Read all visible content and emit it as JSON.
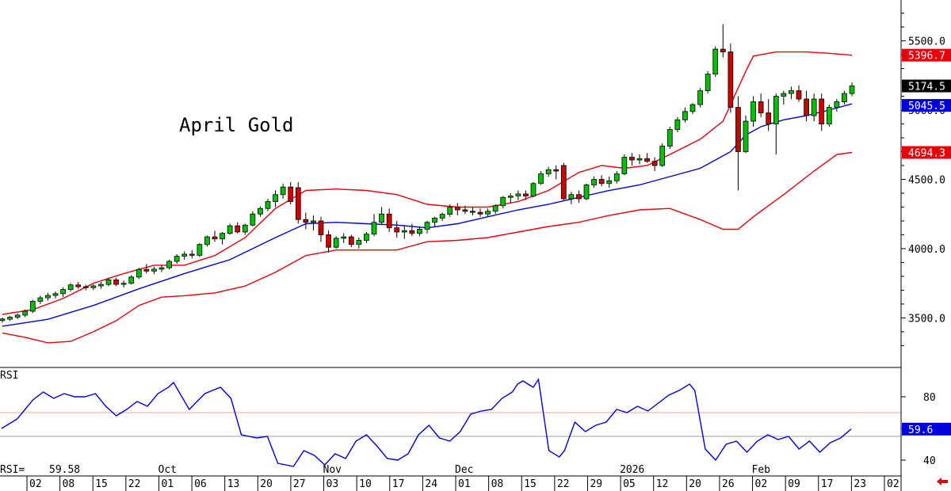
{
  "chart_data": {
    "type": "candlestick",
    "title": "April Gold",
    "price_axis": {
      "ticks": [
        "5500.0",
        "5000.0",
        "4500.0",
        "4000.0",
        "3500.0"
      ],
      "tick_values": [
        5500,
        5000,
        4500,
        4000,
        3500
      ],
      "ylim": [
        3165,
        5795
      ]
    },
    "x_labels": [
      "02",
      "08",
      "15",
      "22",
      "01",
      "06",
      "13",
      "20",
      "27",
      "03",
      "10",
      "17",
      "24",
      "01",
      "08",
      "15",
      "22",
      "29",
      "05",
      "12",
      "20",
      "26",
      "02",
      "09",
      "17",
      "23",
      "02"
    ],
    "month_labels": [
      {
        "text": "Oct",
        "at_label_index": 4
      },
      {
        "text": "Nov",
        "at_label_index": 9
      },
      {
        "text": "Dec",
        "at_label_index": 13
      },
      {
        "text": "2026",
        "at_label_index": 18
      },
      {
        "text": "Feb",
        "at_label_index": 22
      }
    ],
    "tags": {
      "upper_band": {
        "text": "5396.7",
        "value": 5396.7,
        "color": "#e8000b"
      },
      "last_close": {
        "text": "5174.5",
        "value": 5174.5,
        "color": "#000000"
      },
      "middle_band": {
        "text": "5045.5",
        "value": 5045.5,
        "color": "#0000dd"
      },
      "lower_band": {
        "text": "4694.3",
        "value": 4694.3,
        "color": "#e8000b"
      }
    },
    "ohlc": [
      [
        3481,
        3502,
        3465,
        3492
      ],
      [
        3490,
        3515,
        3478,
        3505
      ],
      [
        3505,
        3530,
        3492,
        3520
      ],
      [
        3520,
        3560,
        3505,
        3548
      ],
      [
        3548,
        3630,
        3535,
        3620
      ],
      [
        3620,
        3660,
        3600,
        3645
      ],
      [
        3645,
        3680,
        3625,
        3662
      ],
      [
        3662,
        3690,
        3640,
        3675
      ],
      [
        3675,
        3720,
        3650,
        3705
      ],
      [
        3705,
        3750,
        3690,
        3738
      ],
      [
        3738,
        3760,
        3710,
        3725
      ],
      [
        3725,
        3740,
        3700,
        3718
      ],
      [
        3718,
        3742,
        3700,
        3731
      ],
      [
        3731,
        3760,
        3710,
        3742
      ],
      [
        3742,
        3790,
        3728,
        3775
      ],
      [
        3775,
        3790,
        3730,
        3742
      ],
      [
        3742,
        3770,
        3720,
        3750
      ],
      [
        3750,
        3808,
        3740,
        3795
      ],
      [
        3795,
        3860,
        3780,
        3850
      ],
      [
        3850,
        3890,
        3820,
        3838
      ],
      [
        3838,
        3870,
        3815,
        3852
      ],
      [
        3852,
        3880,
        3830,
        3862
      ],
      [
        3862,
        3920,
        3850,
        3908
      ],
      [
        3908,
        3960,
        3890,
        3945
      ],
      [
        3945,
        3980,
        3920,
        3960
      ],
      [
        3960,
        3990,
        3930,
        3952
      ],
      [
        3952,
        4040,
        3940,
        4030
      ],
      [
        4030,
        4095,
        4015,
        4085
      ],
      [
        4085,
        4130,
        4050,
        4070
      ],
      [
        4070,
        4120,
        4030,
        4110
      ],
      [
        4110,
        4180,
        4100,
        4165
      ],
      [
        4165,
        4190,
        4110,
        4120
      ],
      [
        4120,
        4180,
        4100,
        4170
      ],
      [
        4170,
        4270,
        4160,
        4250
      ],
      [
        4250,
        4305,
        4230,
        4290
      ],
      [
        4290,
        4360,
        4270,
        4340
      ],
      [
        4340,
        4420,
        4300,
        4390
      ],
      [
        4390,
        4470,
        4360,
        4445
      ],
      [
        4445,
        4480,
        4320,
        4340
      ],
      [
        4440,
        4480,
        4180,
        4210
      ],
      [
        4210,
        4260,
        4140,
        4190
      ],
      [
        4190,
        4240,
        4130,
        4200
      ],
      [
        4200,
        4230,
        4050,
        4100
      ],
      [
        4100,
        4130,
        3970,
        4010
      ],
      [
        4010,
        4090,
        4000,
        4075
      ],
      [
        4075,
        4110,
        4040,
        4085
      ],
      [
        4085,
        4100,
        4010,
        4030
      ],
      [
        4030,
        4080,
        4000,
        4060
      ],
      [
        4060,
        4120,
        4040,
        4105
      ],
      [
        4105,
        4250,
        4090,
        4190
      ],
      [
        4190,
        4300,
        4170,
        4250
      ],
      [
        4250,
        4290,
        4120,
        4150
      ],
      [
        4150,
        4200,
        4080,
        4120
      ],
      [
        4120,
        4170,
        4070,
        4130
      ],
      [
        4130,
        4180,
        4090,
        4110
      ],
      [
        4110,
        4160,
        4090,
        4140
      ],
      [
        4140,
        4200,
        4110,
        4190
      ],
      [
        4190,
        4230,
        4160,
        4220
      ],
      [
        4220,
        4260,
        4200,
        4248
      ],
      [
        4248,
        4320,
        4230,
        4300
      ],
      [
        4300,
        4330,
        4240,
        4280
      ],
      [
        4280,
        4310,
        4250,
        4270
      ],
      [
        4270,
        4300,
        4240,
        4262
      ],
      [
        4262,
        4290,
        4230,
        4250
      ],
      [
        4250,
        4290,
        4230,
        4270
      ],
      [
        4270,
        4320,
        4250,
        4310
      ],
      [
        4310,
        4380,
        4290,
        4370
      ],
      [
        4370,
        4400,
        4330,
        4380
      ],
      [
        4380,
        4420,
        4350,
        4395
      ],
      [
        4395,
        4420,
        4350,
        4380
      ],
      [
        4380,
        4480,
        4370,
        4470
      ],
      [
        4470,
        4560,
        4460,
        4540
      ],
      [
        4540,
        4590,
        4520,
        4570
      ],
      [
        4570,
        4600,
        4500,
        4560
      ],
      [
        4600,
        4620,
        4350,
        4360
      ],
      [
        4360,
        4410,
        4320,
        4390
      ],
      [
        4390,
        4420,
        4330,
        4360
      ],
      [
        4360,
        4470,
        4350,
        4460
      ],
      [
        4460,
        4520,
        4440,
        4500
      ],
      [
        4500,
        4530,
        4450,
        4470
      ],
      [
        4470,
        4520,
        4440,
        4490
      ],
      [
        4490,
        4560,
        4470,
        4540
      ],
      [
        4540,
        4680,
        4530,
        4660
      ],
      [
        4660,
        4690,
        4600,
        4640
      ],
      [
        4640,
        4680,
        4610,
        4650
      ],
      [
        4650,
        4690,
        4620,
        4630
      ],
      [
        4630,
        4660,
        4560,
        4600
      ],
      [
        4600,
        4760,
        4590,
        4740
      ],
      [
        4740,
        4880,
        4720,
        4860
      ],
      [
        4860,
        4950,
        4840,
        4930
      ],
      [
        4930,
        5020,
        4910,
        4990
      ],
      [
        4990,
        5050,
        4970,
        5040
      ],
      [
        5040,
        5160,
        5020,
        5140
      ],
      [
        5140,
        5280,
        5120,
        5260
      ],
      [
        5260,
        5460,
        5240,
        5440
      ],
      [
        5440,
        5620,
        5380,
        5420
      ],
      [
        5420,
        5480,
        4980,
        5020
      ],
      [
        5020,
        5100,
        4420,
        4700
      ],
      [
        4700,
        4960,
        4690,
        4920
      ],
      [
        4920,
        5100,
        4880,
        5060
      ],
      [
        5060,
        5120,
        4950,
        4980
      ],
      [
        4980,
        5080,
        4850,
        4900
      ],
      [
        4900,
        5120,
        4680,
        5100
      ],
      [
        5100,
        5140,
        5040,
        5120
      ],
      [
        5120,
        5170,
        5080,
        5140
      ],
      [
        5140,
        5180,
        5060,
        5080
      ],
      [
        5080,
        5140,
        4920,
        4960
      ],
      [
        4960,
        5120,
        4920,
        5080
      ],
      [
        5080,
        5120,
        4850,
        4900
      ],
      [
        4900,
        5040,
        4880,
        5020
      ],
      [
        5020,
        5080,
        4990,
        5060
      ],
      [
        5060,
        5140,
        5040,
        5120
      ],
      [
        5120,
        5200,
        5100,
        5174.5
      ]
    ],
    "upper_band": [
      [
        0,
        3525
      ],
      [
        4,
        3560
      ],
      [
        8,
        3640
      ],
      [
        12,
        3750
      ],
      [
        16,
        3820
      ],
      [
        20,
        3880
      ],
      [
        24,
        3880
      ],
      [
        28,
        3950
      ],
      [
        32,
        4080
      ],
      [
        36,
        4290
      ],
      [
        40,
        4420
      ],
      [
        44,
        4430
      ],
      [
        48,
        4420
      ],
      [
        52,
        4390
      ],
      [
        56,
        4320
      ],
      [
        60,
        4300
      ],
      [
        64,
        4300
      ],
      [
        68,
        4340
      ],
      [
        72,
        4420
      ],
      [
        76,
        4550
      ],
      [
        79,
        4600
      ],
      [
        82,
        4580
      ],
      [
        85,
        4600
      ],
      [
        88,
        4680
      ],
      [
        92,
        4790
      ],
      [
        95,
        4920
      ],
      [
        98,
        5280
      ],
      [
        99,
        5390
      ],
      [
        102,
        5420
      ],
      [
        106,
        5420
      ],
      [
        109,
        5410
      ],
      [
        112,
        5396.7
      ]
    ],
    "middle_band": [
      [
        0,
        3440
      ],
      [
        6,
        3490
      ],
      [
        12,
        3590
      ],
      [
        18,
        3710
      ],
      [
        24,
        3820
      ],
      [
        30,
        3920
      ],
      [
        36,
        4080
      ],
      [
        40,
        4180
      ],
      [
        44,
        4190
      ],
      [
        48,
        4180
      ],
      [
        52,
        4170
      ],
      [
        56,
        4150
      ],
      [
        60,
        4180
      ],
      [
        64,
        4230
      ],
      [
        68,
        4280
      ],
      [
        72,
        4320
      ],
      [
        76,
        4370
      ],
      [
        80,
        4420
      ],
      [
        84,
        4460
      ],
      [
        88,
        4520
      ],
      [
        92,
        4580
      ],
      [
        96,
        4700
      ],
      [
        98,
        4820
      ],
      [
        100,
        4880
      ],
      [
        103,
        4930
      ],
      [
        106,
        4960
      ],
      [
        109,
        5000
      ],
      [
        112,
        5045.5
      ]
    ],
    "lower_band": [
      [
        0,
        3390
      ],
      [
        3,
        3360
      ],
      [
        6,
        3320
      ],
      [
        9,
        3330
      ],
      [
        12,
        3400
      ],
      [
        15,
        3480
      ],
      [
        18,
        3590
      ],
      [
        21,
        3650
      ],
      [
        24,
        3660
      ],
      [
        28,
        3680
      ],
      [
        32,
        3730
      ],
      [
        36,
        3830
      ],
      [
        40,
        3950
      ],
      [
        44,
        3990
      ],
      [
        48,
        3990
      ],
      [
        52,
        3990
      ],
      [
        56,
        4050
      ],
      [
        60,
        4060
      ],
      [
        64,
        4080
      ],
      [
        68,
        4120
      ],
      [
        72,
        4160
      ],
      [
        76,
        4190
      ],
      [
        80,
        4240
      ],
      [
        84,
        4280
      ],
      [
        88,
        4290
      ],
      [
        92,
        4210
      ],
      [
        95,
        4140
      ],
      [
        97,
        4140
      ],
      [
        99,
        4230
      ],
      [
        103,
        4390
      ],
      [
        107,
        4560
      ],
      [
        110,
        4680
      ],
      [
        112,
        4694.3
      ]
    ],
    "rsi": {
      "label": "RSI",
      "readout_label": "RSI=",
      "readout_value": "59.58",
      "last_tag": "59.6",
      "ticks": [
        "80",
        "60",
        "40"
      ],
      "tick_values": [
        80,
        60,
        40
      ],
      "overbought": 70,
      "oversold": 30,
      "ylim": [
        30,
        98
      ],
      "values": [
        [
          0,
          60
        ],
        [
          3,
          66
        ],
        [
          6,
          78
        ],
        [
          8,
          83
        ],
        [
          10,
          79
        ],
        [
          12,
          82
        ],
        [
          14,
          80
        ],
        [
          16,
          80
        ],
        [
          18,
          82
        ],
        [
          20,
          74
        ],
        [
          22,
          68
        ],
        [
          24,
          72
        ],
        [
          26,
          77
        ],
        [
          28,
          74
        ],
        [
          30,
          82
        ],
        [
          32,
          86
        ],
        [
          33,
          89
        ],
        [
          36,
          72
        ],
        [
          39,
          82
        ],
        [
          42,
          86
        ],
        [
          44,
          79
        ],
        [
          46,
          56
        ],
        [
          49,
          54
        ],
        [
          51,
          55
        ],
        [
          53,
          38
        ],
        [
          56,
          36
        ],
        [
          58,
          46
        ],
        [
          60,
          43
        ],
        [
          62,
          37
        ],
        [
          64,
          44
        ],
        [
          66,
          41
        ],
        [
          68,
          52
        ],
        [
          70,
          56
        ],
        [
          72,
          49
        ],
        [
          74,
          41
        ],
        [
          76,
          40
        ],
        [
          78,
          44
        ],
        [
          80,
          56
        ],
        [
          82,
          62
        ],
        [
          84,
          54
        ],
        [
          86,
          52
        ],
        [
          88,
          58
        ],
        [
          90,
          69
        ],
        [
          92,
          71
        ],
        [
          94,
          72
        ],
        [
          96,
          79
        ],
        [
          98,
          83
        ],
        [
          99,
          88
        ],
        [
          100,
          90
        ],
        [
          102,
          86
        ],
        [
          103,
          91
        ],
        [
          105,
          46
        ],
        [
          107,
          42
        ],
        [
          108,
          46
        ],
        [
          110,
          64
        ],
        [
          112,
          58
        ],
        [
          114,
          62
        ],
        [
          116,
          64
        ],
        [
          118,
          72
        ],
        [
          120,
          70
        ],
        [
          122,
          74
        ],
        [
          124,
          71
        ],
        [
          126,
          76
        ],
        [
          128,
          81
        ],
        [
          130,
          84
        ],
        [
          132,
          88
        ],
        [
          133,
          84
        ],
        [
          135,
          47
        ],
        [
          137,
          40
        ],
        [
          139,
          50
        ],
        [
          141,
          52
        ],
        [
          143,
          45
        ],
        [
          145,
          52
        ],
        [
          147,
          56
        ],
        [
          149,
          53
        ],
        [
          151,
          55
        ],
        [
          153,
          47
        ],
        [
          155,
          52
        ],
        [
          157,
          45
        ],
        [
          159,
          51
        ],
        [
          161,
          54
        ],
        [
          163,
          59.58
        ]
      ]
    }
  },
  "colors": {
    "up": "#00c000",
    "down": "#cc0000",
    "band": "#e8000b",
    "ma": "#0000dd",
    "rsi_line": "#0000dd"
  }
}
